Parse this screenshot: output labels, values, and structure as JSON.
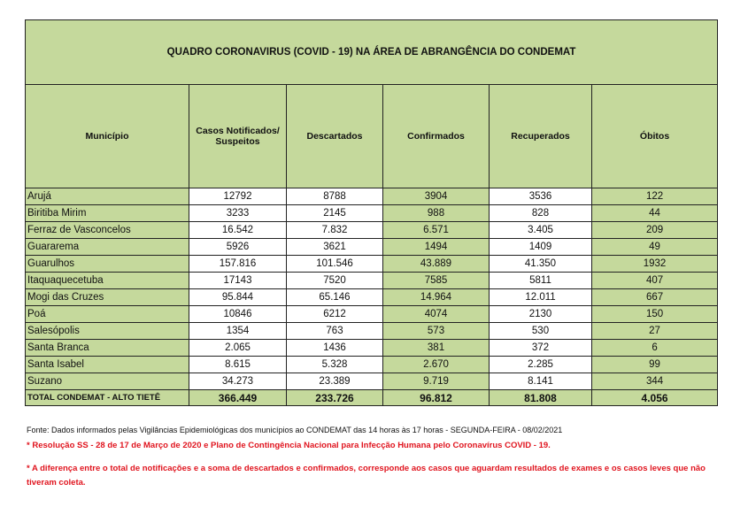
{
  "title": "QUADRO CORONAVIRUS (COVID - 19) NA ÁREA DE ABRANGÊNCIA DO CONDEMAT",
  "columns": [
    "Município",
    "Casos Notificados/ Suspeitos",
    "Descartados",
    "Confirmados",
    "Recuperados",
    "Óbitos"
  ],
  "rows": [
    {
      "municipio": "Arujá",
      "casos": "12792",
      "descartados": "8788",
      "confirmados": "3904",
      "recuperados": "3536",
      "obitos": "122"
    },
    {
      "municipio": "Biritiba Mirim",
      "casos": "3233",
      "descartados": "2145",
      "confirmados": "988",
      "recuperados": "828",
      "obitos": "44"
    },
    {
      "municipio": "Ferraz de Vasconcelos",
      "casos": "16.542",
      "descartados": "7.832",
      "confirmados": "6.571",
      "recuperados": "3.405",
      "obitos": "209"
    },
    {
      "municipio": "Guararema",
      "casos": "5926",
      "descartados": "3621",
      "confirmados": "1494",
      "recuperados": "1409",
      "obitos": "49"
    },
    {
      "municipio": "Guarulhos",
      "casos": "157.816",
      "descartados": "101.546",
      "confirmados": "43.889",
      "recuperados": "41.350",
      "obitos": "1932"
    },
    {
      "municipio": "Itaquaquecetuba",
      "casos": "17143",
      "descartados": "7520",
      "confirmados": "7585",
      "recuperados": "5811",
      "obitos": "407"
    },
    {
      "municipio": "Mogi das Cruzes",
      "casos": "95.844",
      "descartados": "65.146",
      "confirmados": "14.964",
      "recuperados": "12.011",
      "obitos": "667"
    },
    {
      "municipio": "Poá",
      "casos": "10846",
      "descartados": "6212",
      "confirmados": "4074",
      "recuperados": "2130",
      "obitos": "150"
    },
    {
      "municipio": "Salesópolis",
      "casos": "1354",
      "descartados": "763",
      "confirmados": "573",
      "recuperados": "530",
      "obitos": "27"
    },
    {
      "municipio": "Santa Branca",
      "casos": "2.065",
      "descartados": "1436",
      "confirmados": "381",
      "recuperados": "372",
      "obitos": "6"
    },
    {
      "municipio": "Santa Isabel",
      "casos": "8.615",
      "descartados": "5.328",
      "confirmados": "2.670",
      "recuperados": "2.285",
      "obitos": "99"
    },
    {
      "municipio": "Suzano",
      "casos": "34.273",
      "descartados": "23.389",
      "confirmados": "9.719",
      "recuperados": "8.141",
      "obitos": "344"
    }
  ],
  "total": {
    "municipio": "TOTAL CONDEMAT - ALTO TIETÊ",
    "casos": "366.449",
    "descartados": "233.726",
    "confirmados": "96.812",
    "recuperados": "81.808",
    "obitos": "4.056"
  },
  "notes": {
    "fonte": "Fonte: Dados informados pelas Vigilâncias Epidemiológicas dos municípios ao CONDEMAT das 14 horas às 17 horas - SEGUNDA-FEIRA - 08/02/2021",
    "resolucao": "* Resolução SS - 28 de 17 de Março de 2020 e Plano de Contingência Nacional para Infecção Humana pelo Coronavírus COVID - 19.",
    "diferenca": "* A diferença entre o total de notificações e a soma de descartados e confirmados, corresponde aos casos que aguardam resultados de exames e os casos leves que não tiveram coleta."
  },
  "colors": {
    "header_green": "#c5d99c",
    "note_red": "#e0141e"
  }
}
